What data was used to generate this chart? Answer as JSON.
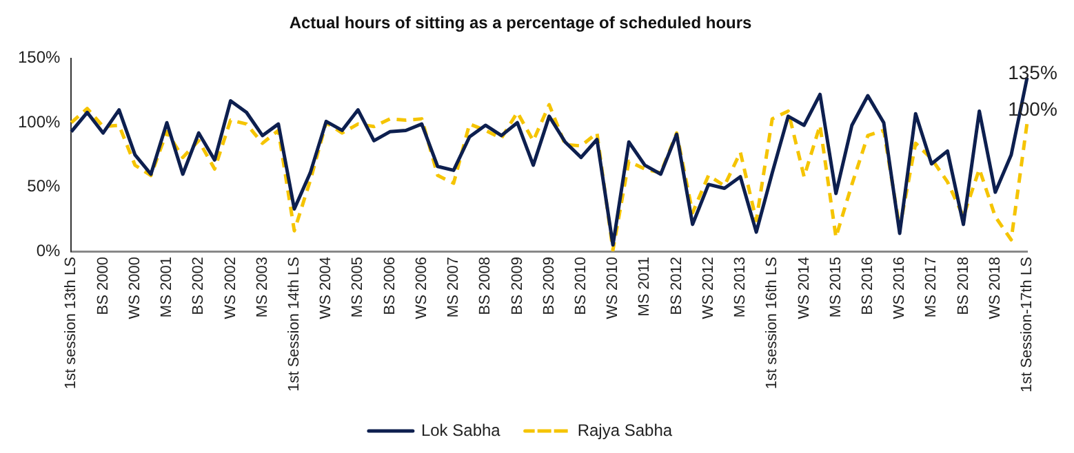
{
  "chart_data": {
    "type": "line",
    "title": "Actual hours of sitting as a percentage of scheduled hours",
    "categories": [
      "1st session 13th LS",
      null,
      "BS 2000",
      null,
      "WS 2000",
      null,
      "MS 2001",
      null,
      "BS 2002",
      null,
      "WS 2002",
      null,
      "MS 2003",
      null,
      "1st Session 14th LS",
      null,
      "WS 2004",
      null,
      "MS 2005",
      null,
      "BS 2006",
      null,
      "WS 2006",
      null,
      "MS 2007",
      null,
      "BS 2008",
      null,
      "BS 2009",
      null,
      "BS 2009",
      null,
      "BS 2010",
      null,
      "WS 2010",
      null,
      "MS 2011",
      null,
      "BS 2012",
      null,
      "WS 2012",
      null,
      "MS 2013",
      null,
      "1st session 16th LS",
      null,
      "WS 2014",
      null,
      "MS 2015",
      null,
      "BS 2016",
      null,
      "WS 2016",
      null,
      "MS 2017",
      null,
      "BS 2018",
      null,
      "WS 2018",
      null,
      "1st Session-17th LS"
    ],
    "series": [
      {
        "name": "Lok Sabha",
        "color": "#0d1f4f",
        "line_style": "solid",
        "values": [
          93,
          108,
          92,
          110,
          75,
          60,
          100,
          60,
          92,
          71,
          117,
          108,
          90,
          99,
          33,
          61,
          101,
          94,
          110,
          86,
          93,
          94,
          99,
          66,
          63,
          89,
          98,
          90,
          100,
          67,
          105,
          85,
          73,
          87,
          5,
          85,
          67,
          60,
          91,
          21,
          52,
          49,
          58,
          15,
          61,
          105,
          98,
          122,
          45,
          98,
          121,
          100,
          14,
          107,
          68,
          78,
          21,
          109,
          46,
          75,
          135
        ],
        "value_labels": [
          null,
          null,
          null,
          null,
          null,
          null,
          null,
          null,
          null,
          null,
          null,
          null,
          null,
          null,
          null,
          null,
          null,
          null,
          null,
          null,
          null,
          null,
          null,
          null,
          null,
          null,
          null,
          null,
          null,
          null,
          null,
          null,
          null,
          null,
          null,
          null,
          null,
          null,
          null,
          null,
          null,
          null,
          null,
          null,
          null,
          null,
          null,
          null,
          null,
          null,
          null,
          null,
          null,
          null,
          null,
          null,
          null,
          null,
          null,
          null,
          "135%"
        ]
      },
      {
        "name": "Rajya Sabha",
        "color": "#f5c400",
        "line_style": "dashed",
        "values": [
          100,
          111,
          97,
          98,
          67,
          59,
          93,
          73,
          86,
          64,
          102,
          99,
          84,
          94,
          16,
          55,
          100,
          92,
          99,
          97,
          103,
          102,
          103,
          59,
          53,
          99,
          94,
          88,
          108,
          86,
          114,
          83,
          82,
          92,
          1,
          70,
          64,
          61,
          92,
          30,
          59,
          51,
          77,
          24,
          103,
          109,
          58,
          98,
          11,
          52,
          90,
          94,
          18,
          84,
          72,
          54,
          27,
          64,
          27,
          9,
          100
        ],
        "value_labels": [
          null,
          null,
          null,
          null,
          null,
          null,
          null,
          null,
          null,
          null,
          null,
          null,
          null,
          null,
          null,
          null,
          null,
          null,
          null,
          null,
          null,
          null,
          null,
          null,
          null,
          null,
          null,
          null,
          null,
          null,
          null,
          null,
          null,
          null,
          null,
          null,
          null,
          null,
          null,
          null,
          null,
          null,
          null,
          null,
          null,
          null,
          null,
          null,
          null,
          null,
          null,
          null,
          null,
          null,
          null,
          null,
          null,
          null,
          null,
          null,
          "100%"
        ]
      }
    ],
    "ylim": [
      0,
      150
    ],
    "yticks": [
      {
        "value": 0,
        "label": "0%"
      },
      {
        "value": 50,
        "label": "50%"
      },
      {
        "value": 100,
        "label": "100%"
      },
      {
        "value": 150,
        "label": "150%"
      }
    ],
    "grid": false,
    "legend": "bottom",
    "marker": "none"
  }
}
